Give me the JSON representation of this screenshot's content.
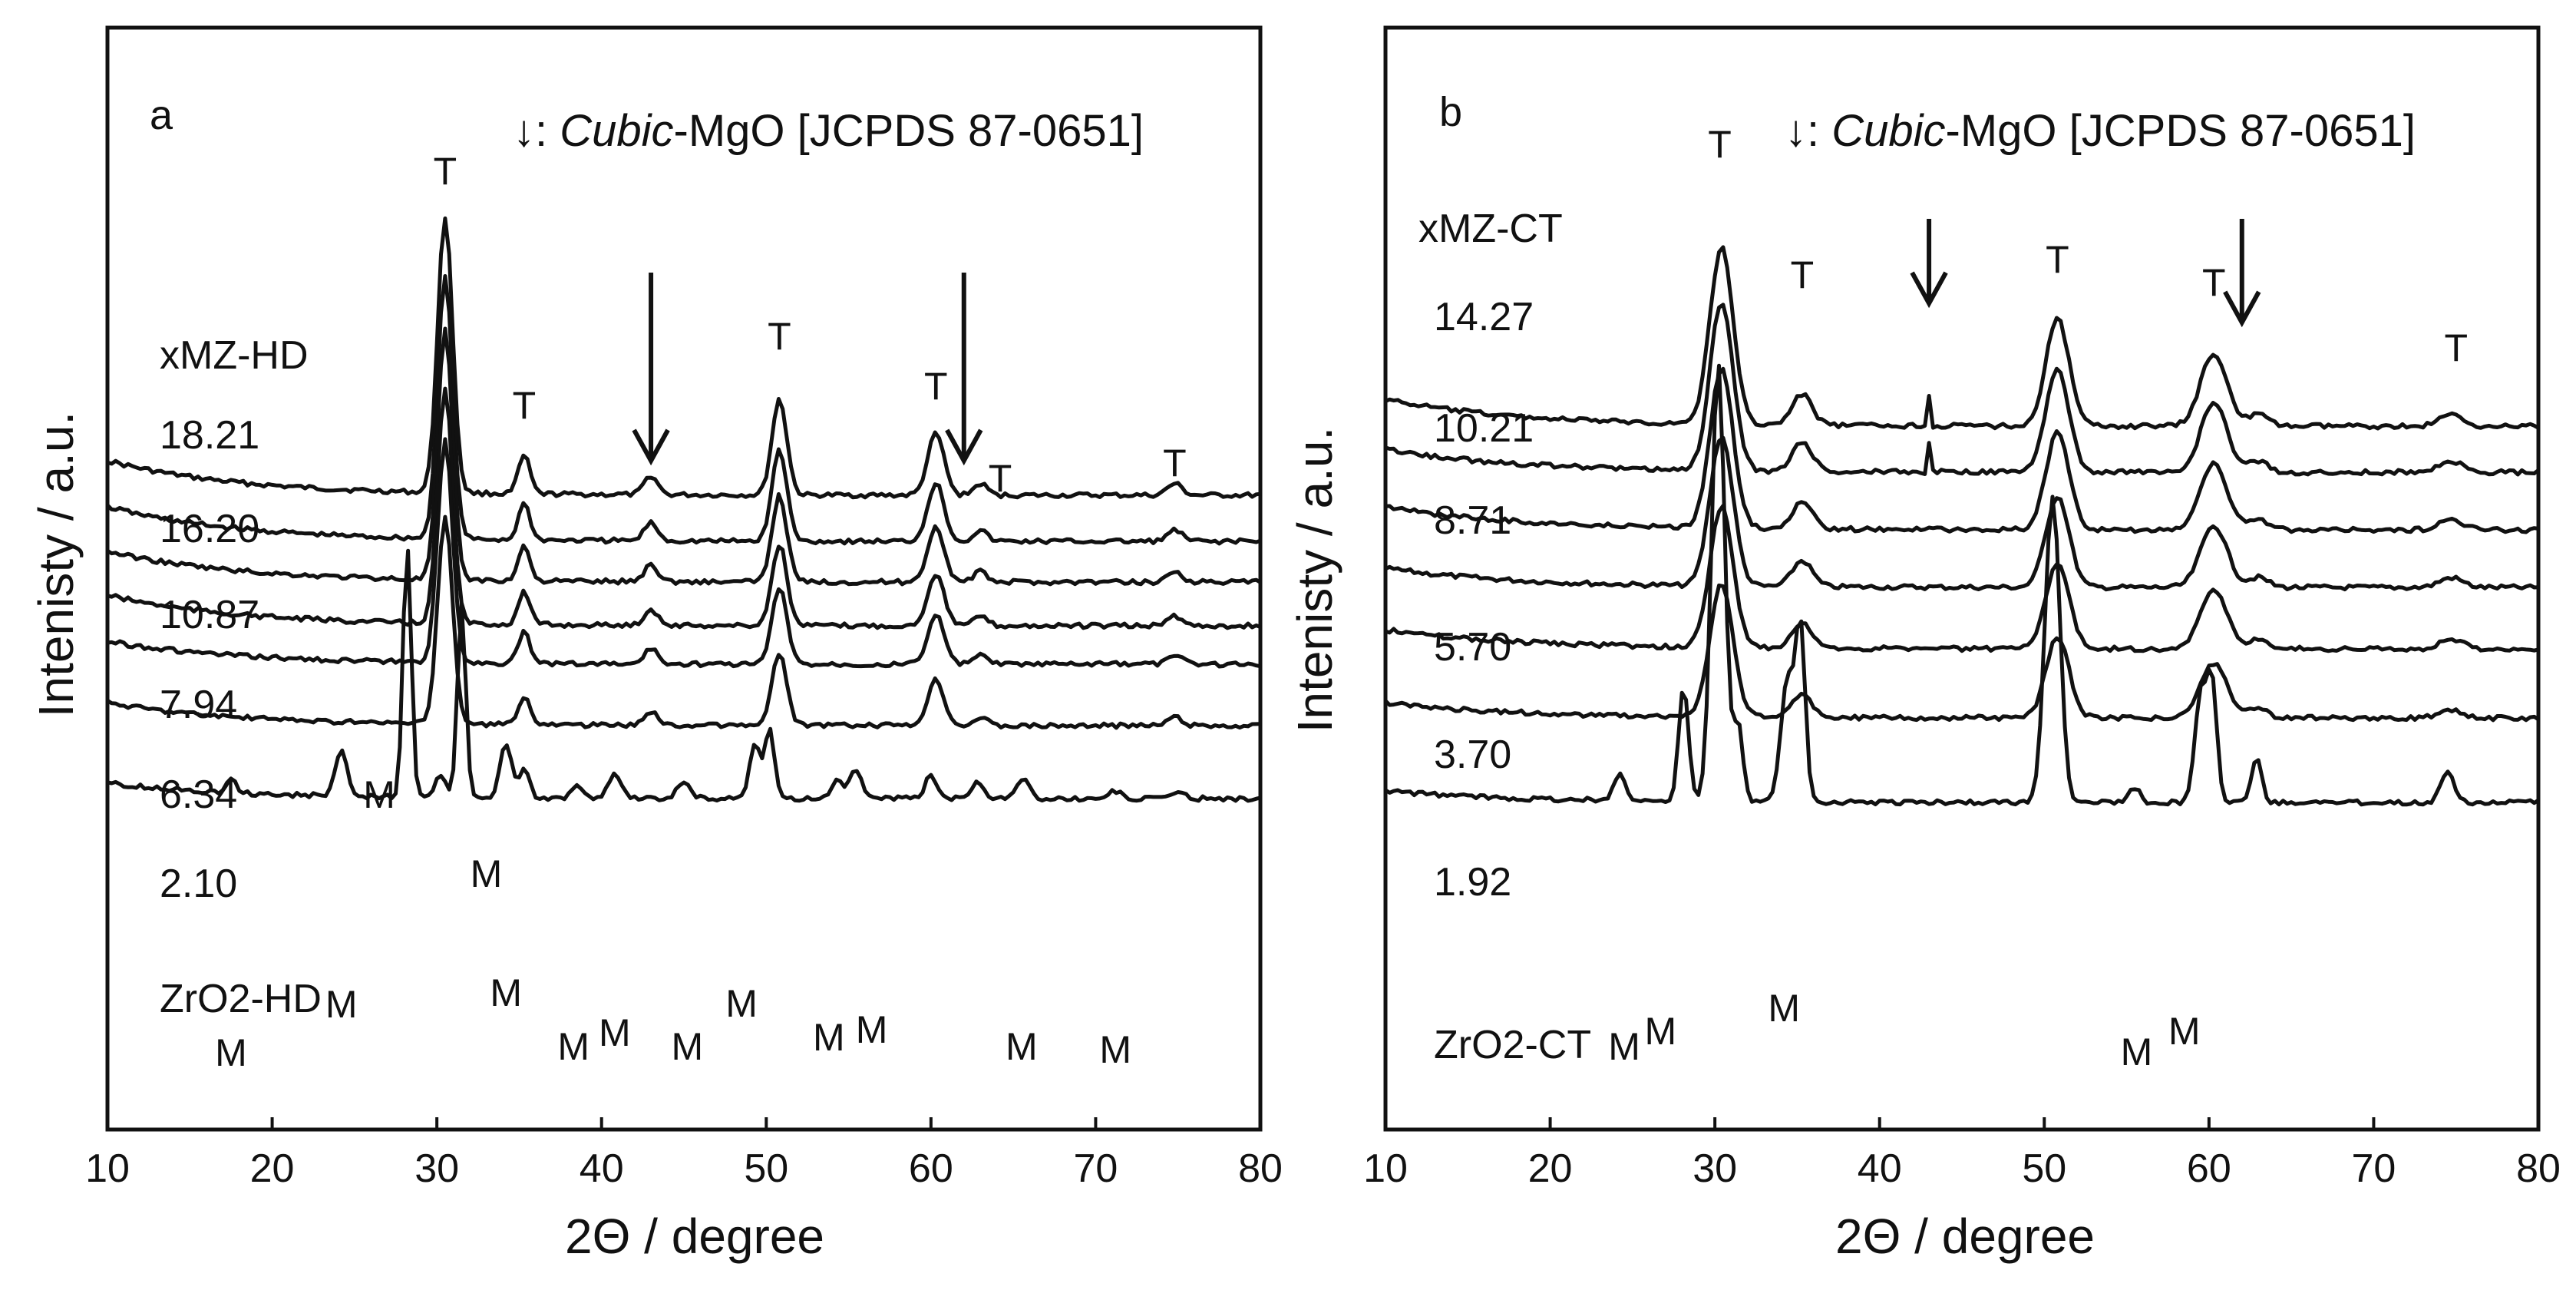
{
  "chart_data": [
    {
      "type": "line",
      "panel": "a",
      "xlabel": "2Θ / degree",
      "ylabel": "Intenisty / a.u.",
      "xlim": [
        10,
        80
      ],
      "xticks": [
        10,
        20,
        30,
        40,
        50,
        60,
        70,
        80
      ],
      "legend": {
        "arrow": "↓",
        "prefix": ": ",
        "phase": "Cubic",
        "suffix": "-MgO [JCPDS 87-0651]"
      },
      "group_title": "xMZ-HD",
      "series": [
        {
          "name": "18.21"
        },
        {
          "name": "16.20"
        },
        {
          "name": "10.87"
        },
        {
          "name": "7.94"
        },
        {
          "name": "6.34"
        },
        {
          "name": "2.10"
        },
        {
          "name": "ZrO2-HD"
        }
      ],
      "mgo_peaks": [
        43,
        62
      ],
      "labels": {
        "T": "T",
        "M": "M"
      }
    },
    {
      "type": "line",
      "panel": "b",
      "xlabel": "2Θ / degree",
      "ylabel": "Intenisty / a.u.",
      "xlim": [
        10,
        80
      ],
      "xticks": [
        10,
        20,
        30,
        40,
        50,
        60,
        70,
        80
      ],
      "legend": {
        "arrow": "↓",
        "prefix": ": ",
        "phase": "Cubic",
        "suffix": "-MgO [JCPDS 87-0651]"
      },
      "group_title": "xMZ-CT",
      "series": [
        {
          "name": "14.27"
        },
        {
          "name": "10.21"
        },
        {
          "name": "8.71"
        },
        {
          "name": "5.70"
        },
        {
          "name": "3.70"
        },
        {
          "name": "1.92"
        },
        {
          "name": "ZrO2-CT"
        }
      ],
      "mgo_peaks": [
        43,
        62
      ],
      "labels": {
        "T": "T",
        "M": "M"
      }
    }
  ]
}
